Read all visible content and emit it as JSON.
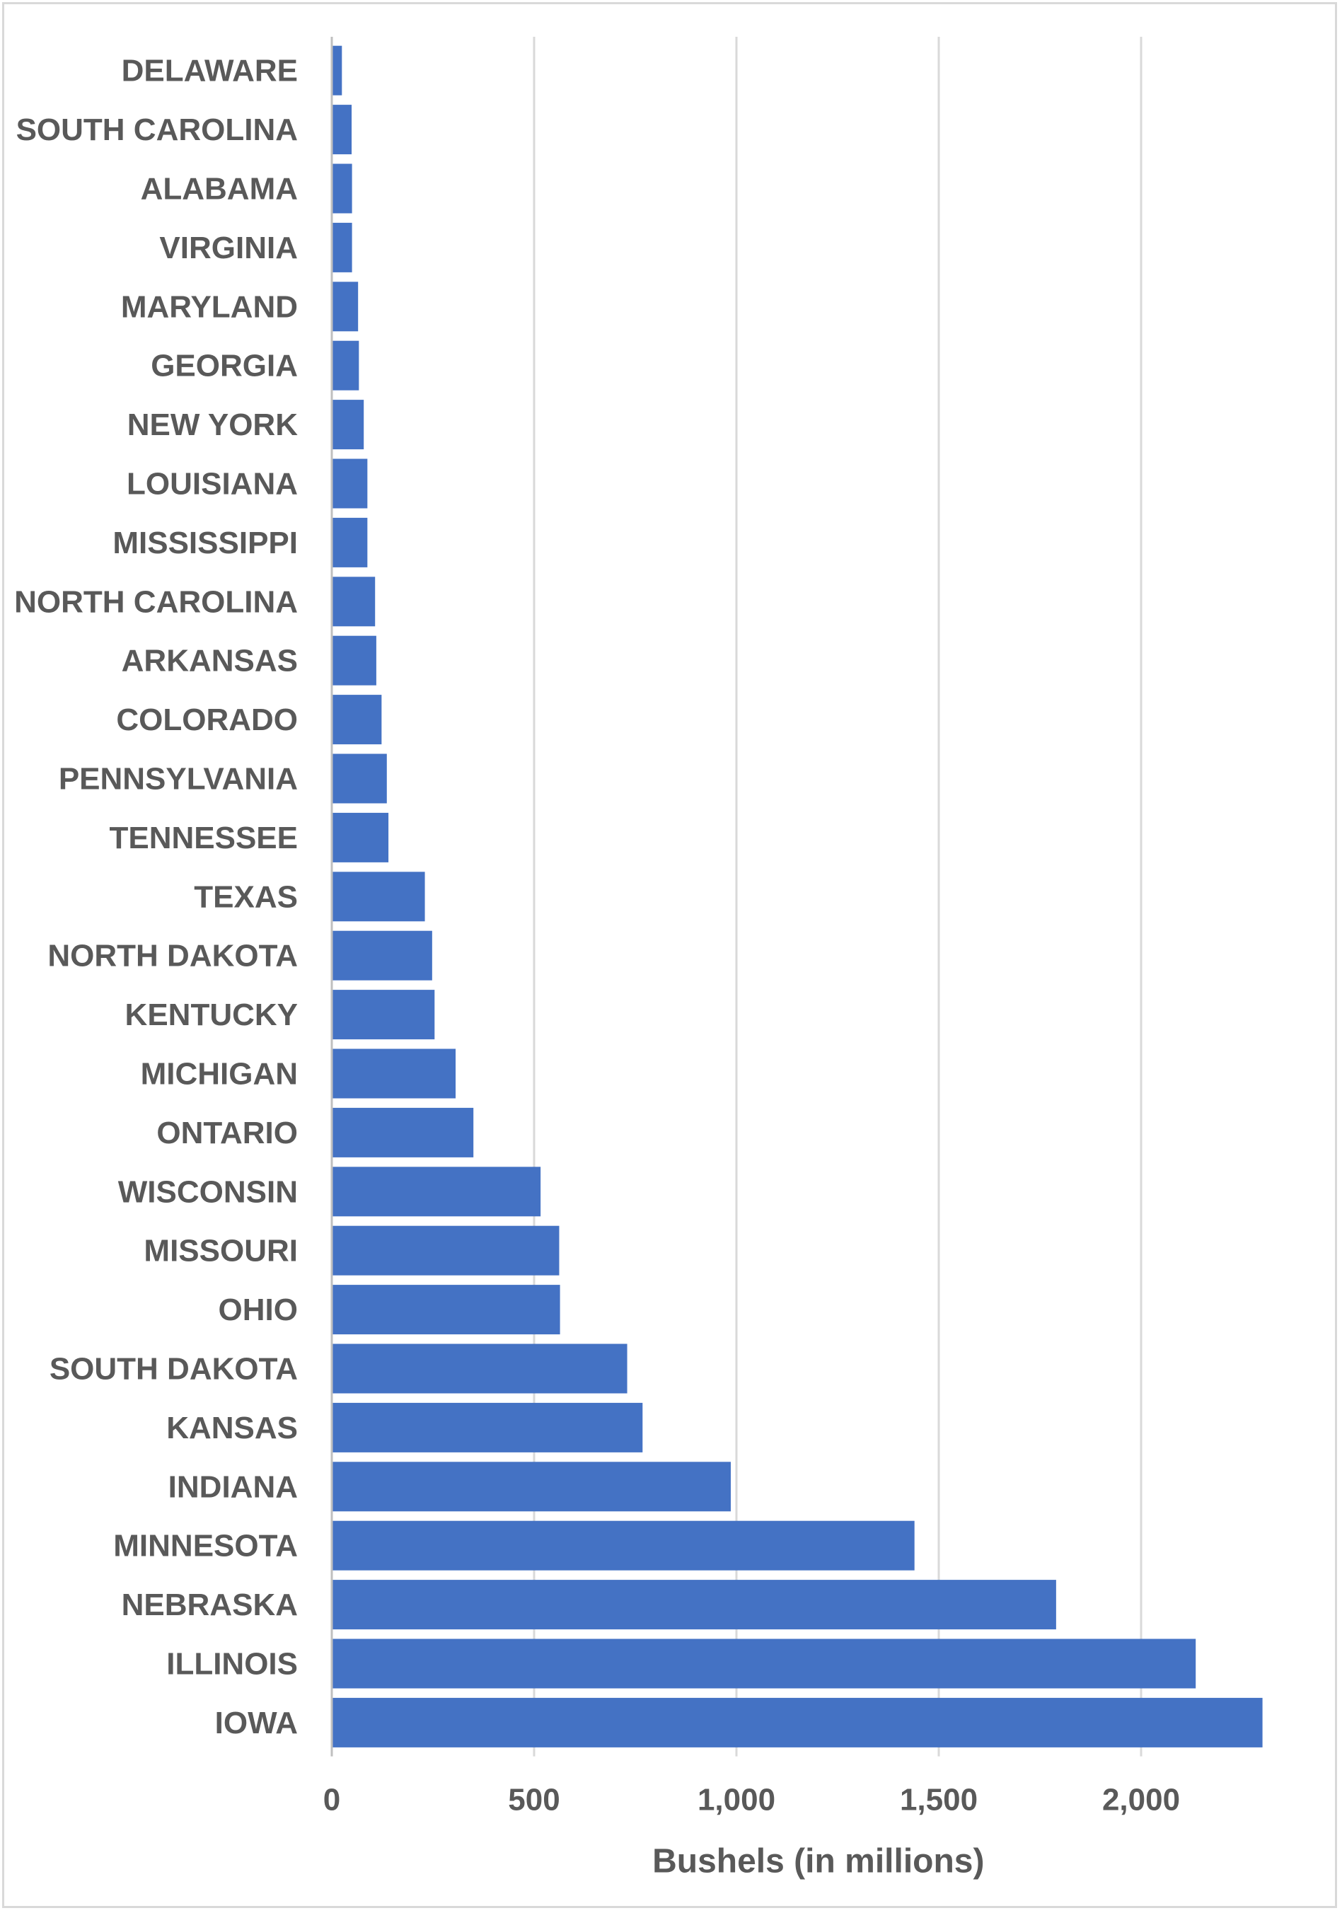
{
  "chart_data": {
    "type": "bar",
    "orientation": "horizontal",
    "categories": [
      "DELAWARE",
      "SOUTH CAROLINA",
      "ALABAMA",
      "VIRGINIA",
      "MARYLAND",
      "GEORGIA",
      "NEW YORK",
      "LOUISIANA",
      "MISSISSIPPI",
      "NORTH CAROLINA",
      "ARKANSAS",
      "COLORADO",
      "PENNSYLVANIA",
      "TENNESSEE",
      "TEXAS",
      "NORTH DAKOTA",
      "KENTUCKY",
      "MICHIGAN",
      "ONTARIO",
      "WISCONSIN",
      "MISSOURI",
      "OHIO",
      "SOUTH DAKOTA",
      "KANSAS",
      "INDIANA",
      "MINNESOTA",
      "NEBRASKA",
      "ILLINOIS",
      "IOWA"
    ],
    "values": [
      25,
      49,
      50,
      50,
      65,
      67,
      79,
      88,
      88,
      107,
      110,
      123,
      136,
      140,
      230,
      248,
      254,
      306,
      350,
      516,
      562,
      564,
      730,
      768,
      986,
      1440,
      1790,
      2135,
      2300
    ],
    "xticks": [
      "0",
      "500",
      "1,000",
      "1,500",
      "2,000"
    ],
    "xlim": [
      0,
      2300
    ],
    "xlabel": "Bushels (in millions)",
    "ylabel": "",
    "title": "",
    "grid": "vertical",
    "legend": "none",
    "bar_color": "#4472c4"
  }
}
